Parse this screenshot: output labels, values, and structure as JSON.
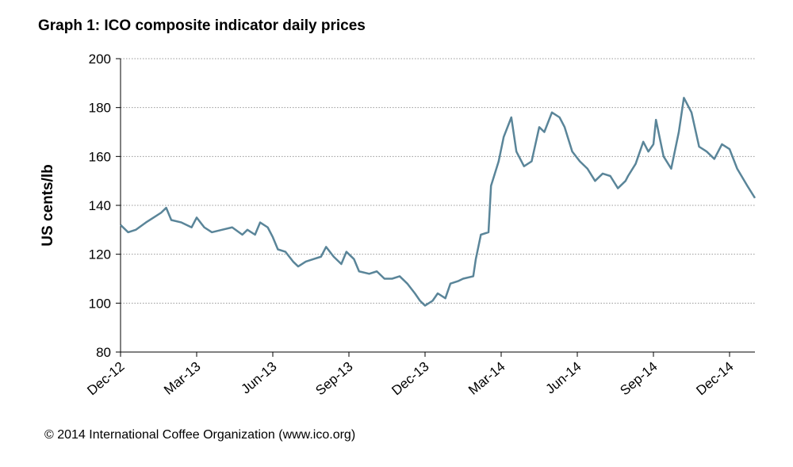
{
  "chart_data": {
    "type": "line",
    "title": "Graph 1: ICO composite indicator daily prices",
    "y_label": "US cents/lb",
    "source": "© 2014 International Coffee Organization (www.ico.org)",
    "xlim": [
      0,
      25
    ],
    "xticks": [
      {
        "value": 0,
        "label": "Dec-12"
      },
      {
        "value": 3,
        "label": "Mar-13"
      },
      {
        "value": 6,
        "label": "Jun-13"
      },
      {
        "value": 9,
        "label": "Sep-13"
      },
      {
        "value": 12,
        "label": "Dec-13"
      },
      {
        "value": 15,
        "label": "Mar-14"
      },
      {
        "value": 18,
        "label": "Jun-14"
      },
      {
        "value": 21,
        "label": "Sep-14"
      },
      {
        "value": 24,
        "label": "Dec-14"
      }
    ],
    "ylim": [
      80,
      200
    ],
    "yticks": [
      80,
      100,
      120,
      140,
      160,
      180,
      200
    ],
    "grid": true,
    "series": [
      {
        "color": "#5a8599",
        "x": [
          0,
          0.3,
          0.6,
          1.0,
          1.3,
          1.6,
          1.8,
          2.0,
          2.4,
          2.8,
          3.0,
          3.3,
          3.6,
          4.0,
          4.4,
          4.8,
          5.0,
          5.3,
          5.5,
          5.8,
          6.0,
          6.2,
          6.5,
          6.8,
          7.0,
          7.3,
          7.6,
          7.9,
          8.1,
          8.4,
          8.7,
          8.9,
          9.2,
          9.4,
          9.8,
          10.1,
          10.4,
          10.7,
          11.0,
          11.3,
          11.6,
          11.8,
          12.0,
          12.3,
          12.5,
          12.8,
          13.0,
          13.3,
          13.5,
          13.9,
          14.0,
          14.2,
          14.5,
          14.6,
          14.9,
          15.1,
          15.4,
          15.6,
          15.9,
          16.2,
          16.5,
          16.7,
          17.0,
          17.3,
          17.5,
          17.8,
          18.1,
          18.4,
          18.7,
          19.0,
          19.3,
          19.6,
          19.9,
          20.0,
          20.3,
          20.6,
          20.8,
          21.0,
          21.1,
          21.4,
          21.7,
          22.0,
          22.2,
          22.5,
          22.8,
          23.1,
          23.4,
          23.7,
          24.0,
          24.3,
          24.7,
          25.0
        ],
        "values": [
          132,
          129,
          130,
          133,
          135,
          137,
          139,
          134,
          133,
          131,
          135,
          131,
          129,
          130,
          131,
          128,
          130,
          128,
          133,
          131,
          127,
          122,
          121,
          117,
          115,
          117,
          118,
          119,
          123,
          119,
          116,
          121,
          118,
          113,
          112,
          113,
          110,
          110,
          111,
          108,
          104,
          101,
          99,
          101,
          104,
          102,
          108,
          109,
          110,
          111,
          118,
          128,
          129,
          148,
          158,
          168,
          176,
          162,
          156,
          158,
          172,
          170,
          178,
          176,
          172,
          162,
          158,
          155,
          150,
          153,
          152,
          147,
          150,
          152,
          157,
          166,
          162,
          165,
          175,
          160,
          155,
          170,
          184,
          178,
          164,
          162,
          159,
          165,
          163,
          155,
          148,
          143
        ]
      }
    ]
  }
}
